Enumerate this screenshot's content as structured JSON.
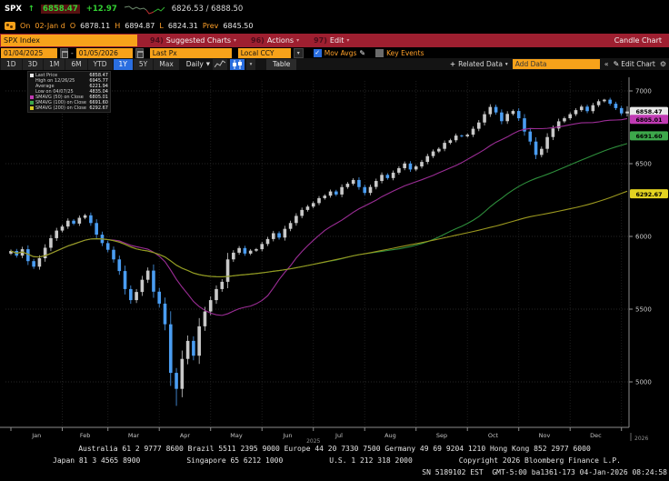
{
  "header": {
    "ticker": "SPX",
    "arrow": "↑",
    "last": "6858.47",
    "change": "+12.97",
    "bid_ask": "6826.53 / 6888.50",
    "on_label": "On",
    "date": "02-Jan d",
    "o_label": "O",
    "open": "6878.11",
    "h_label": "H",
    "high": "6894.87",
    "l_label": "L",
    "low": "6824.31",
    "prev_label": "Prev",
    "prev": "6845.50"
  },
  "menubar": {
    "security_input": "SPX Index",
    "items": [
      {
        "num": "94)",
        "label": "Suggested Charts"
      },
      {
        "num": "96)",
        "label": "Actions"
      },
      {
        "num": "97)",
        "label": "Edit"
      }
    ],
    "right_label": "Candle Chart"
  },
  "toolbar": {
    "date_from": "01/04/2025",
    "date_to": "01/05/2026",
    "field": "Last Px",
    "currency": "Local CCY",
    "mov_avgs_label": "Mov Avgs",
    "key_events_label": "Key Events"
  },
  "tabs": {
    "periods": [
      "1D",
      "3D",
      "1M",
      "6M",
      "YTD",
      "1Y",
      "5Y",
      "Max"
    ],
    "active": "1Y",
    "frequency": "Daily",
    "table_label": "Table",
    "related_data_label": "Related Data",
    "add_data_placeholder": "Add Data",
    "edit_chart_label": "Edit Chart"
  },
  "legend": {
    "rows": [
      {
        "label": "Last Price",
        "value": "6858.47",
        "chip": "#e9e9e9"
      },
      {
        "label": "High on 12/26/25",
        "value": "6945.77",
        "chip": ""
      },
      {
        "label": "Average",
        "value": "6221.94",
        "chip": ""
      },
      {
        "label": "Low on 04/07/25",
        "value": "4835.04",
        "chip": ""
      },
      {
        "label": "SMAVG (50) on Close",
        "value": "6805.01",
        "chip": "#c13bb4"
      },
      {
        "label": "SMAVG (100) on Close",
        "value": "6691.60",
        "chip": "#3da84b"
      },
      {
        "label": "SMAVG (200) on Close",
        "value": "6292.67",
        "chip": "#d8c921"
      }
    ]
  },
  "chart_data": {
    "type": "candlestick",
    "title": "SPX Index — 1Y Daily Candle Chart",
    "x_months": [
      "Jan",
      "Feb",
      "Mar",
      "Apr",
      "May",
      "Jun",
      "Jul",
      "Aug",
      "Sep",
      "Oct",
      "Nov",
      "Dec"
    ],
    "x_years": [
      "2025",
      "2026"
    ],
    "ylim": [
      4700,
      7100
    ],
    "yticks": [
      7000,
      6500,
      6000,
      5500,
      5000
    ],
    "grid": "dotted",
    "legend_position": "top-left",
    "open0": 5882,
    "closes": [
      5900,
      5868,
      5912,
      5830,
      5792,
      5850,
      5922,
      5988,
      6040,
      6068,
      6108,
      6088,
      6128,
      6145,
      6092,
      6012,
      5954,
      5908,
      5842,
      5762,
      5638,
      5562,
      5618,
      5702,
      5765,
      5620,
      5538,
      5396,
      5062,
      4952,
      5158,
      5282,
      5180,
      5382,
      5484,
      5562,
      5638,
      5688,
      5842,
      5888,
      5920,
      5882,
      5902,
      5912,
      5948,
      5982,
      6022,
      5992,
      6052,
      6092,
      6141,
      6182,
      6205,
      6229,
      6263,
      6280,
      6309,
      6288,
      6339,
      6362,
      6388,
      6339,
      6299,
      6340,
      6381,
      6423,
      6401,
      6438,
      6469,
      6501,
      6460,
      6481,
      6512,
      6552,
      6584,
      6602,
      6643,
      6661,
      6693,
      6688,
      6699,
      6740,
      6783,
      6840,
      6890,
      6852,
      6792,
      6842,
      6862,
      6812,
      6721,
      6652,
      6560,
      6602,
      6683,
      6742,
      6791,
      6812,
      6840,
      6868,
      6892,
      6861,
      6902,
      6929,
      6940,
      6912,
      6882,
      6845.5,
      6858.47
    ],
    "month_start_idx": [
      0,
      9,
      17,
      26,
      35,
      44,
      53,
      62,
      71,
      80,
      89,
      98,
      107
    ],
    "low_overrides": {
      "29": 4835.04,
      "108": 6824.31
    },
    "high_overrides": {
      "104": 6945.77,
      "108": 6894.87
    },
    "last_price": 6858.47,
    "last_price_label": "6858.47",
    "high": {
      "date": "12/26/25",
      "value": 6945.77
    },
    "low": {
      "date": "04/07/25",
      "value": 4835.04
    },
    "average": 6221.94,
    "smavg": [
      {
        "name": "SMAVG (50) on Close",
        "value": 6805.01,
        "value_label": "6805.01",
        "window": 18,
        "color": "#9c2d96",
        "badge": "#c13bb4"
      },
      {
        "name": "SMAVG (100) on Close",
        "value": 6691.6,
        "value_label": "6691.60",
        "window": 55,
        "color": "#2e8f3c",
        "badge": "#3da84b"
      },
      {
        "name": "SMAVG (200) on Close",
        "value": 6292.67,
        "value_label": "6292.67",
        "window": 86,
        "color": "#9c991f",
        "badge": "#e3d321"
      }
    ],
    "colors": {
      "up": "#c9c9c9",
      "down": "#4a9df2",
      "grid": "#262626",
      "axis": "#8d8d8d"
    }
  },
  "footer": {
    "line1": "Australia 61 2 9777 8600 Brazil 5511 2395 9000 Europe 44 20 7330 7500 Germany 49 69 9204 1210 Hong Kong 852 2977 6000",
    "line2_parts": [
      "Japan 81 3 4565 8900",
      "Singapore 65 6212 1000",
      "U.S. 1 212 318 2000",
      "Copyright 2026 Bloomberg Finance L.P."
    ],
    "line3": "SN 5189102 EST  GMT-5:00 ba1361-173 04-Jan-2026 08:24:58"
  }
}
